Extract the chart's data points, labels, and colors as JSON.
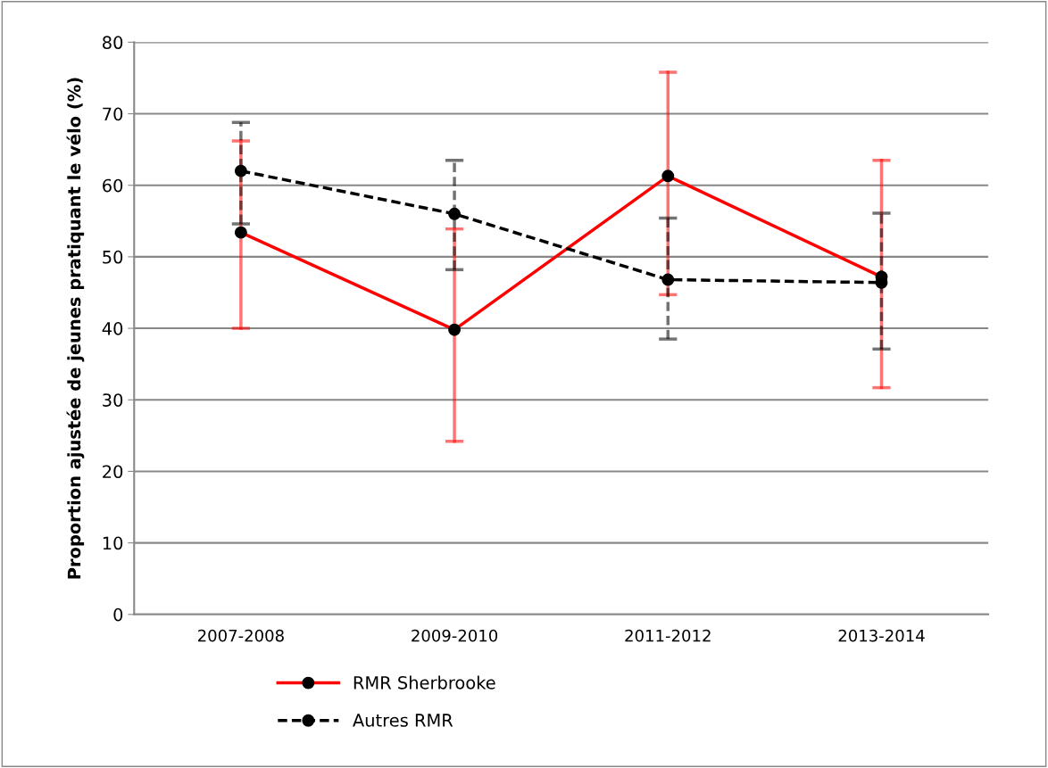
{
  "chart_data": {
    "type": "line",
    "ylabel": "Proportion ajustée de jeunes pratiquant le vélo (%)",
    "categories": [
      "2007-2008",
      "2009-2010",
      "2011-2012",
      "2013-2014"
    ],
    "series": [
      {
        "name": "RMR Sherbrooke",
        "color": "#ff0000",
        "line_style": "solid",
        "values": [
          53.4,
          39.8,
          61.3,
          47.2
        ],
        "errors": [
          [
            40.0,
            66.2
          ],
          [
            24.2,
            53.9
          ],
          [
            44.7,
            75.8
          ],
          [
            31.7,
            63.5
          ]
        ]
      },
      {
        "name": "Autres RMR",
        "color": "#000000",
        "line_style": "dashed",
        "values": [
          62.0,
          56.0,
          46.8,
          46.4
        ],
        "errors": [
          [
            54.6,
            68.8
          ],
          [
            48.2,
            63.5
          ],
          [
            38.5,
            55.4
          ],
          [
            37.1,
            56.1
          ]
        ]
      }
    ],
    "ylim": [
      0,
      80
    ],
    "yticks": [
      0,
      10,
      20,
      30,
      40,
      50,
      60,
      70,
      80
    ],
    "grid": "y",
    "legend": "bottom",
    "marker": "circle"
  }
}
